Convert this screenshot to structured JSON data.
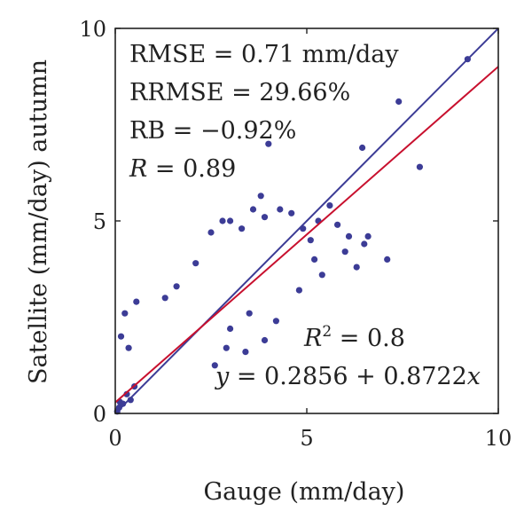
{
  "chart_data": {
    "type": "scatter",
    "xlabel": "Gauge (mm/day)",
    "ylabel": "Satellite (mm/day) autumn",
    "xlim": [
      0,
      10
    ],
    "ylim": [
      0,
      10
    ],
    "x_ticks": [
      "0",
      "5",
      "10"
    ],
    "y_ticks": [
      "0",
      "5",
      "10"
    ],
    "grid": false,
    "colors": {
      "points": "#3c3c96",
      "one_to_one_line": "#3c3c96",
      "fit_line": "#c8102e",
      "frame": "#222222"
    },
    "stats": {
      "rmse": "RMSE = 0.71 mm/day",
      "rrmse": "RRMSE = 29.66%",
      "rb": "RB = −0.92%",
      "r_symbol": "R",
      "r_value": " = 0.89",
      "r2_symbol": "R",
      "r2_exp": "2",
      "r2_value": " = 0.8",
      "eq_y": "y",
      "eq_mid": " = 0.2856 + 0.8722",
      "eq_x": "x"
    },
    "lines": [
      {
        "name": "",
        "kind": "one-to-one",
        "intercept": 0,
        "slope": 1
      },
      {
        "name": "",
        "kind": "regression",
        "intercept": 0.2856,
        "slope": 0.8722
      }
    ],
    "points": [
      [
        9.2,
        9.2
      ],
      [
        7.4,
        8.1
      ],
      [
        7.95,
        6.4
      ],
      [
        6.45,
        6.9
      ],
      [
        4.0,
        7.0
      ],
      [
        3.8,
        5.65
      ],
      [
        5.6,
        5.4
      ],
      [
        5.8,
        4.9
      ],
      [
        6.1,
        4.6
      ],
      [
        6.6,
        4.6
      ],
      [
        6.5,
        4.4
      ],
      [
        6.0,
        4.2
      ],
      [
        7.1,
        4.0
      ],
      [
        6.3,
        3.8
      ],
      [
        5.1,
        4.5
      ],
      [
        4.9,
        4.8
      ],
      [
        5.3,
        5.0
      ],
      [
        4.6,
        5.2
      ],
      [
        5.4,
        3.6
      ],
      [
        5.2,
        4.0
      ],
      [
        4.8,
        3.2
      ],
      [
        4.2,
        2.4
      ],
      [
        3.9,
        1.9
      ],
      [
        3.4,
        1.6
      ],
      [
        2.6,
        1.25
      ],
      [
        2.9,
        1.7
      ],
      [
        0.25,
        2.6
      ],
      [
        0.55,
        2.9
      ],
      [
        0.15,
        2.0
      ],
      [
        0.35,
        1.7
      ],
      [
        2.8,
        5.0
      ],
      [
        3.0,
        5.0
      ],
      [
        2.5,
        4.7
      ],
      [
        3.6,
        5.3
      ],
      [
        3.3,
        4.8
      ],
      [
        3.9,
        5.1
      ],
      [
        4.3,
        5.3
      ],
      [
        1.6,
        3.3
      ],
      [
        2.1,
        3.9
      ],
      [
        1.3,
        3.0
      ],
      [
        3.5,
        2.6
      ],
      [
        3.0,
        2.2
      ],
      [
        0.05,
        0.05
      ],
      [
        0.1,
        0.15
      ],
      [
        0.12,
        0.3
      ],
      [
        0.2,
        0.25
      ],
      [
        0.3,
        0.5
      ],
      [
        0.4,
        0.35
      ],
      [
        0.5,
        0.7
      ]
    ]
  }
}
